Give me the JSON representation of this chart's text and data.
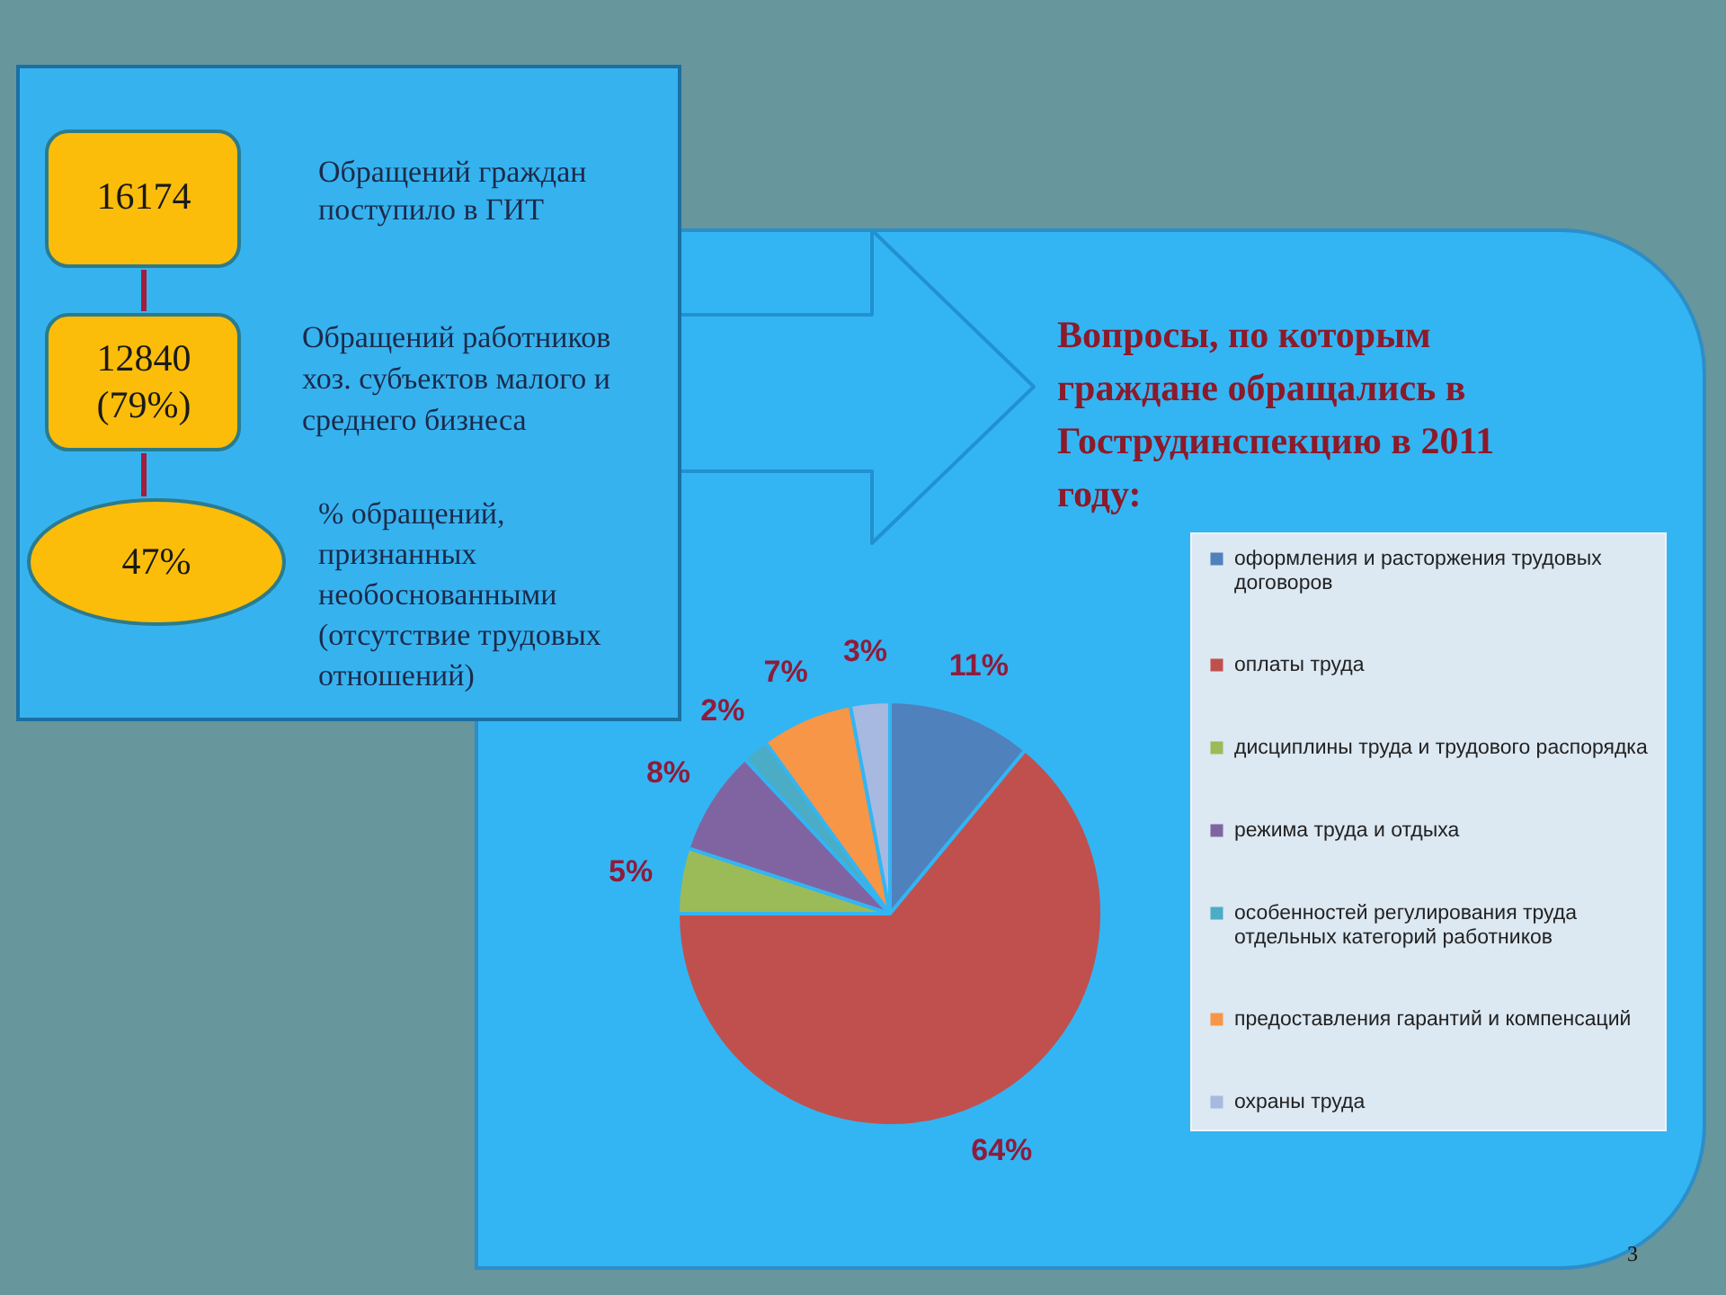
{
  "chart_data": [
    {
      "type": "other",
      "annotations": [
        "16174",
        "Обращений граждан поступило в ГИТ",
        "12840 (79%)",
        "Обращений работников хоз. субъектов малого и среднего бизнеса",
        "47%",
        "% обращений, признанных необоснованными (отсутствие трудовых отношений)"
      ]
    },
    {
      "type": "pie",
      "title": "Вопросы, по которым граждане обращались в Гострудинспекцию в 2011 году:",
      "categories": [
        "оформления и расторжения трудовых договоров",
        "оплаты труда",
        "дисциплины труда и трудового распорядка",
        "режима труда и отдыха",
        "особенностей регулирования труда отдельных категорий работников",
        "предоставления гарантий и компенсаций",
        "охраны труда"
      ],
      "values": [
        11,
        64,
        5,
        8,
        2,
        7,
        3
      ],
      "colors": [
        "#4f81bd",
        "#c0504d",
        "#9bbb59",
        "#8064a2",
        "#4bacc6",
        "#f79646",
        "#a7b9e0"
      ],
      "value_labels": [
        "11%",
        "64%",
        "5%",
        "8%",
        "2%",
        "7%",
        "3%"
      ],
      "legend": "right",
      "annotations": [
        "3"
      ]
    }
  ]
}
